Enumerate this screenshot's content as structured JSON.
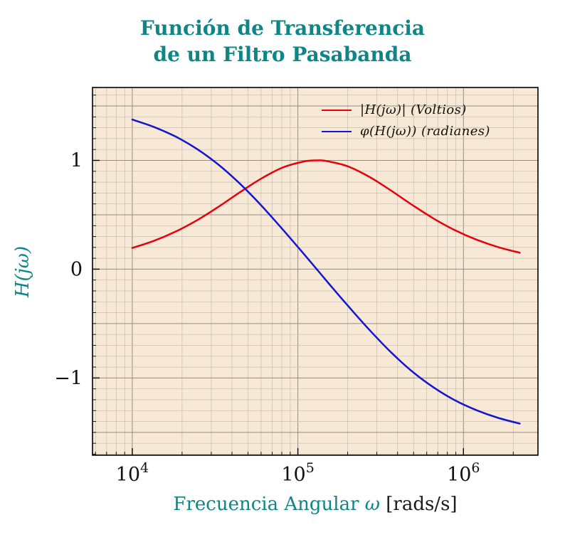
{
  "title": {
    "line1": "Función de Transferencia",
    "line2": "de un Filtro Pasabanda"
  },
  "colors": {
    "title": "#0e8688",
    "accent": "#0e8688",
    "text": "#1a1a1a",
    "page_bg": "#ffffff",
    "plot_bg": "#f7e9d6",
    "grid_minor": "#c6c0b4",
    "grid_major": "#938d82",
    "frame": "#000000",
    "magnitude": "#e8000d",
    "phase": "#1515cd"
  },
  "axes": {
    "xlabel_text": "Frecuencia Angular",
    "xlabel_symbol": "ω",
    "xlabel_unit": "[rads/s]",
    "ylabel": "H(jω)"
  },
  "chart_data": {
    "type": "line",
    "title": "Función de Transferencia de un Filtro Pasabanda",
    "xlabel": "Frecuencia Angular ω [rads/s]",
    "ylabel": "H(jω)",
    "xscale": "log",
    "xlim": [
      5754,
      2818383
    ],
    "ylim": [
      -1.71,
      1.67
    ],
    "grid": "both",
    "legend_position": "top-right",
    "xticks": [
      {
        "value": 10000,
        "base": "10",
        "exp": "4"
      },
      {
        "value": 100000,
        "base": "10",
        "exp": "5"
      },
      {
        "value": 1000000,
        "base": "10",
        "exp": "6"
      }
    ],
    "yticks": [
      {
        "value": -1,
        "label": "−1"
      },
      {
        "value": 0,
        "label": "0"
      },
      {
        "value": 1,
        "label": "1"
      }
    ],
    "series": [
      {
        "name": "|H(jω)| (Voltios)",
        "color": "#e8000d",
        "x": [
          10000,
          13490,
          18197,
          24547,
          33113,
          44668,
          60256,
          81283,
          109648,
          130000,
          147911,
          199526,
          269153,
          363078,
          489779,
          660693,
          891251,
          1202264,
          1621810,
          2187762
        ],
        "y": [
          0.195,
          0.26,
          0.344,
          0.449,
          0.573,
          0.707,
          0.834,
          0.935,
          0.991,
          1.0,
          0.995,
          0.946,
          0.85,
          0.725,
          0.591,
          0.465,
          0.357,
          0.27,
          0.203,
          0.151
        ]
      },
      {
        "name": "φ(H(jω)) (radianes)",
        "color": "#1515cd",
        "x": [
          10000,
          13490,
          18197,
          24547,
          33113,
          44668,
          60256,
          81283,
          109648,
          130000,
          147911,
          199526,
          269153,
          363078,
          489779,
          660693,
          891251,
          1202264,
          1621810,
          2187762
        ],
        "y": [
          1.375,
          1.308,
          1.22,
          1.106,
          0.961,
          0.786,
          0.584,
          0.363,
          0.133,
          0.0,
          -0.101,
          -0.332,
          -0.554,
          -0.76,
          -0.939,
          -1.087,
          -1.206,
          -1.297,
          -1.367,
          -1.419
        ]
      }
    ]
  }
}
